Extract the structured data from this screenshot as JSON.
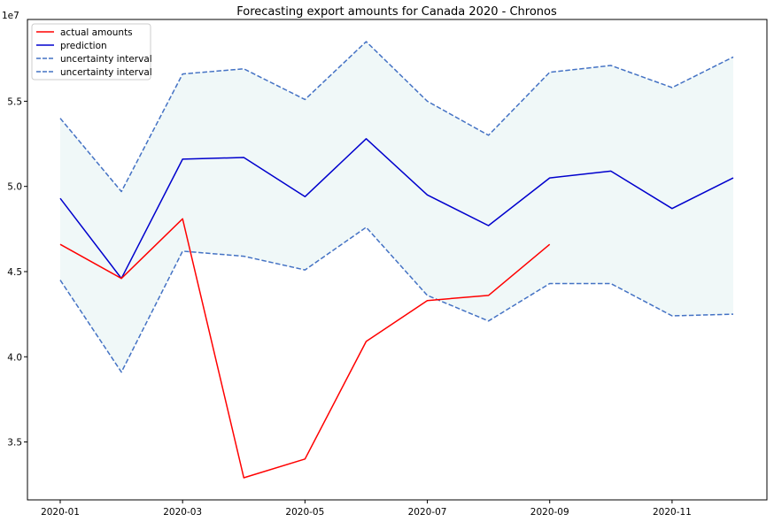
{
  "chart_data": {
    "type": "line",
    "title": "Forecasting export amounts for Canada 2020 - Chronos",
    "xlabel": "",
    "ylabel": "",
    "y_multiplier_label": "1e7",
    "x": [
      "2020-01",
      "2020-02",
      "2020-03",
      "2020-04",
      "2020-05",
      "2020-06",
      "2020-07",
      "2020-08",
      "2020-09",
      "2020-10",
      "2020-11",
      "2020-12"
    ],
    "x_tick_labels": [
      "2020-01",
      "2020-03",
      "2020-05",
      "2020-07",
      "2020-09",
      "2020-11"
    ],
    "y_ticks": [
      3.5,
      4.0,
      4.5,
      5.0,
      5.5
    ],
    "ylim": [
      3.16,
      5.98
    ],
    "legend_position": "top-left",
    "grid": false,
    "series": [
      {
        "name": "actual amounts",
        "color": "#ff0000",
        "style": "solid",
        "values": [
          4.66,
          4.46,
          4.81,
          3.29,
          3.4,
          4.09,
          4.33,
          4.36,
          4.66,
          null,
          null,
          null
        ]
      },
      {
        "name": "prediction",
        "color": "#0000cd",
        "style": "solid",
        "values": [
          4.93,
          4.46,
          5.16,
          5.17,
          4.94,
          5.28,
          4.95,
          4.77,
          5.05,
          5.09,
          4.87,
          5.05
        ]
      },
      {
        "name": "uncertainty interval",
        "color": "#4472c4",
        "style": "dashed",
        "values": [
          5.4,
          4.97,
          5.66,
          5.69,
          5.51,
          5.85,
          5.5,
          5.3,
          5.67,
          5.71,
          5.58,
          5.76
        ]
      },
      {
        "name": "uncertainty interval",
        "color": "#4472c4",
        "style": "dashed",
        "values": [
          4.45,
          3.91,
          4.62,
          4.59,
          4.51,
          4.76,
          4.36,
          4.21,
          4.43,
          4.43,
          4.24,
          4.25
        ]
      }
    ],
    "band_fill_color": "#e6f4f4"
  }
}
